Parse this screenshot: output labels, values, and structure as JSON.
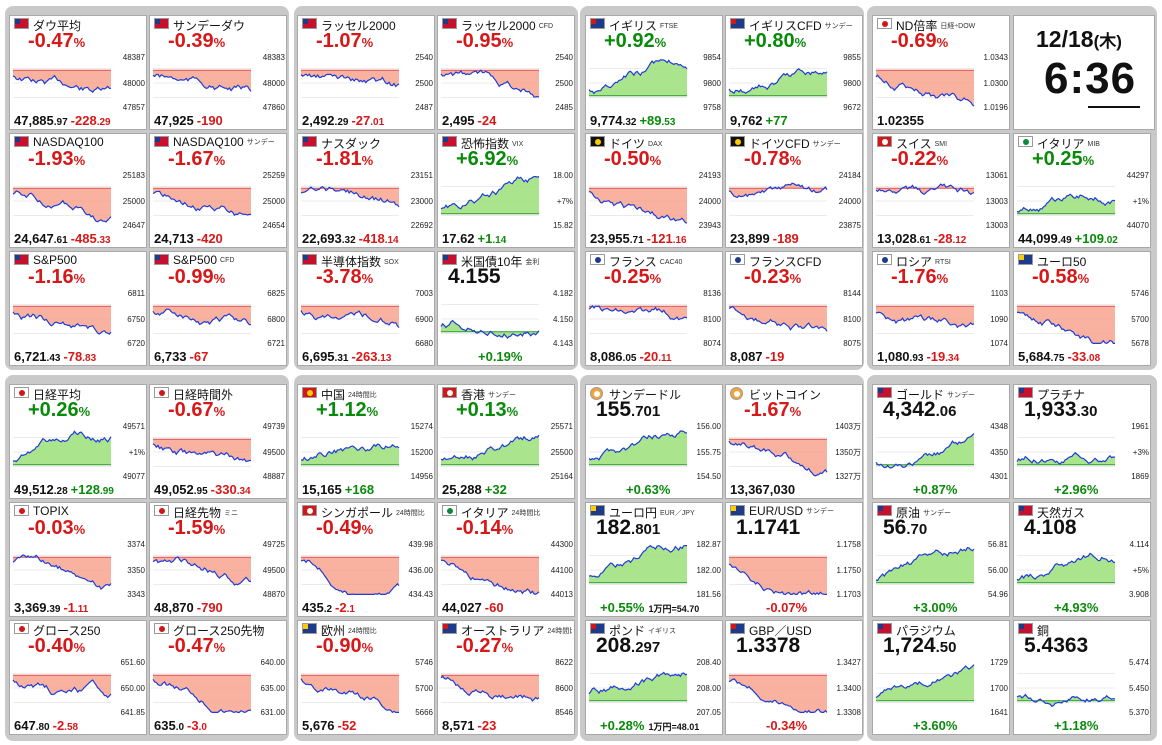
{
  "clock": {
    "date": "12/18",
    "weekday": "(木)",
    "time": "6:36"
  },
  "tiles": [
    {
      "key": "dow",
      "name": "ダウ平均",
      "sub": "",
      "flag": "us",
      "chg": "-0.47",
      "pct": "%",
      "dir": "down",
      "main": "47,885",
      "mainDec": ".97",
      "delta": "-228",
      "deltaDec": ".29",
      "hi": "48387",
      "lo": "47857",
      "tick": "48000"
    },
    {
      "key": "sunday-dow",
      "name": "サンデーダウ",
      "sub": "",
      "flag": "us",
      "chg": "-0.39",
      "pct": "%",
      "dir": "down",
      "main": "47,925",
      "mainDec": "",
      "delta": "-190",
      "deltaDec": "",
      "hi": "48383",
      "lo": "47860",
      "tick": "48000"
    },
    {
      "key": "russell2000",
      "name": "ラッセル2000",
      "sub": "",
      "flag": "us",
      "chg": "-1.07",
      "pct": "%",
      "dir": "down",
      "main": "2,492",
      "mainDec": ".29",
      "delta": "-27",
      "deltaDec": ".01",
      "hi": "2540",
      "lo": "2487",
      "tick": "2500"
    },
    {
      "key": "russell2000-cfd",
      "name": "ラッセル2000",
      "sub": "CFD",
      "flag": "us",
      "chg": "-0.95",
      "pct": "%",
      "dir": "down",
      "main": "2,495",
      "mainDec": "",
      "delta": "-24",
      "deltaDec": "",
      "hi": "2540",
      "lo": "2485",
      "tick": "2500"
    },
    {
      "key": "uk-ftse",
      "name": "イギリス",
      "sub": "FTSE",
      "flag": "uk",
      "chg": "+0.92",
      "pct": "%",
      "dir": "up",
      "main": "9,774",
      "mainDec": ".32",
      "delta": "+89",
      "deltaDec": ".53",
      "hi": "9854",
      "lo": "9758",
      "tick": "9800"
    },
    {
      "key": "uk-cfd",
      "name": "イギリスCFD",
      "sub": "サンデー",
      "flag": "uk",
      "chg": "+0.80",
      "pct": "%",
      "dir": "up",
      "main": "9,762",
      "mainDec": "",
      "delta": "+77",
      "deltaDec": "",
      "hi": "9855",
      "lo": "9672",
      "tick": "9800"
    },
    {
      "key": "nd-ratio",
      "name": "ND倍率",
      "sub": "日経÷DOW",
      "flag": "jp",
      "chg": "-0.69",
      "pct": "%",
      "dir": "down",
      "main": "1.02355",
      "mainDec": "",
      "delta": "",
      "deltaDec": "",
      "hi": "1.0343",
      "lo": "1.0196",
      "tick": "1.0300"
    },
    {
      "key": "nasdaq100",
      "name": "NASDAQ100",
      "sub": "",
      "flag": "us",
      "chg": "-1.93",
      "pct": "%",
      "dir": "down",
      "main": "24,647",
      "mainDec": ".61",
      "delta": "-485",
      "deltaDec": ".33",
      "hi": "25183",
      "lo": "24647",
      "tick": "25000"
    },
    {
      "key": "nasdaq100-sunday",
      "name": "NASDAQ100",
      "sub": "サンデー",
      "flag": "us",
      "chg": "-1.67",
      "pct": "%",
      "dir": "down",
      "main": "24,713",
      "mainDec": "",
      "delta": "-420",
      "deltaDec": "",
      "hi": "25259",
      "lo": "24654",
      "tick": "25000"
    },
    {
      "key": "nasdaq",
      "name": "ナスダック",
      "sub": "",
      "flag": "us",
      "chg": "-1.81",
      "pct": "%",
      "dir": "down",
      "main": "22,693",
      "mainDec": ".32",
      "delta": "-418",
      "deltaDec": ".14",
      "hi": "23151",
      "lo": "22692",
      "tick": "23000"
    },
    {
      "key": "vix",
      "name": "恐怖指数",
      "sub": "VIX",
      "flag": "us",
      "chg": "+6.92",
      "pct": "%",
      "dir": "up",
      "main": "17.62",
      "mainDec": "",
      "delta": "+1",
      "deltaDec": ".14",
      "hi": "18.00",
      "lo": "15.82",
      "tick": "+7%"
    },
    {
      "key": "germany-dax",
      "name": "ドイツ",
      "sub": "DAX",
      "flag": "de",
      "chg": "-0.50",
      "pct": "%",
      "dir": "down",
      "main": "23,955",
      "mainDec": ".71",
      "delta": "-121",
      "deltaDec": ".16",
      "hi": "24193",
      "lo": "23943",
      "tick": "24000"
    },
    {
      "key": "germany-cfd",
      "name": "ドイツCFD",
      "sub": "サンデー",
      "flag": "de",
      "chg": "-0.78",
      "pct": "%",
      "dir": "down",
      "main": "23,899",
      "mainDec": "",
      "delta": "-189",
      "deltaDec": "",
      "hi": "24184",
      "lo": "23875",
      "tick": "24000"
    },
    {
      "key": "swiss-smi",
      "name": "スイス",
      "sub": "SMI",
      "flag": "ch",
      "chg": "-0.22",
      "pct": "%",
      "dir": "down",
      "main": "13,028",
      "mainDec": ".61",
      "delta": "-28",
      "deltaDec": ".12",
      "hi": "13061",
      "lo": "13003",
      "tick": "13003"
    },
    {
      "key": "italy-mib",
      "name": "イタリア",
      "sub": "MIB",
      "flag": "it",
      "chg": "+0.25",
      "pct": "%",
      "dir": "up",
      "main": "44,099",
      "mainDec": ".49",
      "delta": "+109",
      "deltaDec": ".02",
      "hi": "44297",
      "lo": "44070",
      "tick": "+1%"
    },
    {
      "key": "sp500",
      "name": "S&P500",
      "sub": "",
      "flag": "us",
      "chg": "-1.16",
      "pct": "%",
      "dir": "down",
      "main": "6,721",
      "mainDec": ".43",
      "delta": "-78",
      "deltaDec": ".83",
      "hi": "6811",
      "lo": "6720",
      "tick": "6750"
    },
    {
      "key": "sp500-cfd",
      "name": "S&P500",
      "sub": "CFD",
      "flag": "us",
      "chg": "-0.99",
      "pct": "%",
      "dir": "down",
      "main": "6,733",
      "mainDec": "",
      "delta": "-67",
      "deltaDec": "",
      "hi": "6825",
      "lo": "6721",
      "tick": "6800"
    },
    {
      "key": "sox",
      "name": "半導体指数",
      "sub": "SOX",
      "flag": "us",
      "chg": "-3.78",
      "pct": "%",
      "dir": "down",
      "main": "6,695",
      "mainDec": ".31",
      "delta": "-263",
      "deltaDec": ".13",
      "hi": "7003",
      "lo": "6680",
      "tick": "6900"
    },
    {
      "key": "us10y",
      "name": "米国債10年",
      "sub": "金利",
      "flag": "us",
      "big": "4.155",
      "dir": "up",
      "pctline": "+0.19%",
      "hi": "4.182",
      "lo": "4.143",
      "tick": "4.150"
    },
    {
      "key": "france-cac40",
      "name": "フランス",
      "sub": "CAC40",
      "flag": "fr",
      "chg": "-0.25",
      "pct": "%",
      "dir": "down",
      "main": "8,086",
      "mainDec": ".05",
      "delta": "-20",
      "deltaDec": ".11",
      "hi": "8136",
      "lo": "8074",
      "tick": "8100"
    },
    {
      "key": "france-cfd",
      "name": "フランスCFD",
      "sub": "",
      "flag": "fr",
      "chg": "-0.23",
      "pct": "%",
      "dir": "down",
      "main": "8,087",
      "mainDec": "",
      "delta": "-19",
      "deltaDec": "",
      "hi": "8144",
      "lo": "8075",
      "tick": "8100"
    },
    {
      "key": "russia-rtsi",
      "name": "ロシア",
      "sub": "RTSI",
      "flag": "ru",
      "chg": "-1.76",
      "pct": "%",
      "dir": "down",
      "main": "1,080",
      "mainDec": ".93",
      "delta": "-19",
      "deltaDec": ".34",
      "hi": "1103",
      "lo": "1074",
      "tick": "1090"
    },
    {
      "key": "euro50",
      "name": "ユーロ50",
      "sub": "",
      "flag": "eu",
      "chg": "-0.58",
      "pct": "%",
      "dir": "down",
      "main": "5,684",
      "mainDec": ".75",
      "delta": "-33",
      "deltaDec": ".08",
      "hi": "5746",
      "lo": "5678",
      "tick": "5700"
    },
    {
      "key": "nikkei",
      "name": "日経平均",
      "sub": "",
      "flag": "jp",
      "chg": "+0.26",
      "pct": "%",
      "dir": "up",
      "main": "49,512",
      "mainDec": ".28",
      "delta": "+128",
      "deltaDec": ".99",
      "hi": "49571",
      "lo": "49077",
      "tick": "+1%"
    },
    {
      "key": "nikkei-night",
      "name": "日経時間外",
      "sub": "",
      "flag": "jp",
      "chg": "-0.67",
      "pct": "%",
      "dir": "down",
      "main": "49,052",
      "mainDec": ".95",
      "delta": "-330",
      "deltaDec": ".34",
      "hi": "49739",
      "lo": "48887",
      "tick": "49500"
    },
    {
      "key": "china",
      "name": "中国",
      "sub": "24時間比",
      "flag": "cn",
      "chg": "+1.12",
      "pct": "%",
      "dir": "up",
      "main": "15,165",
      "mainDec": "",
      "delta": "+168",
      "deltaDec": "",
      "hi": "15274",
      "lo": "14956",
      "tick": "15200"
    },
    {
      "key": "hongkong",
      "name": "香港",
      "sub": "サンデー",
      "flag": "hk",
      "chg": "+0.13",
      "pct": "%",
      "dir": "up",
      "main": "25,288",
      "mainDec": "",
      "delta": "+32",
      "deltaDec": "",
      "hi": "25571",
      "lo": "25164",
      "tick": "25500"
    },
    {
      "key": "sunday-dollar",
      "name": "サンデードル",
      "sub": "",
      "flag": "btc",
      "big": "155",
      "bigDec": ".701",
      "dir": "up",
      "pctline": "+0.63%",
      "hi": "156.00",
      "lo": "154.50",
      "tick": "155.75"
    },
    {
      "key": "bitcoin",
      "name": "ビットコイン",
      "sub": "",
      "flag": "btc",
      "chg": "-1.67",
      "pct": "%",
      "dir": "down",
      "main": "13,367,030",
      "mainDec": "",
      "delta": "",
      "deltaDec": "",
      "hi": "1403万",
      "lo": "1327万",
      "tick": "1350万"
    },
    {
      "key": "gold",
      "name": "ゴールド",
      "sub": "サンデー",
      "flag": "us",
      "big": "4,342",
      "bigDec": ".06",
      "dir": "up",
      "pctline": "+0.87%",
      "hi": "4348",
      "lo": "4301",
      "tick": "4350"
    },
    {
      "key": "platinum",
      "name": "プラチナ",
      "sub": "",
      "flag": "us",
      "big": "1,933",
      "bigDec": ".30",
      "dir": "up",
      "pctline": "+2.96%",
      "hi": "1961",
      "lo": "1869",
      "tick": "+3%"
    },
    {
      "key": "topix",
      "name": "TOPIX",
      "sub": "",
      "flag": "jp",
      "chg": "-0.03",
      "pct": "%",
      "dir": "down",
      "main": "3,369",
      "mainDec": ".39",
      "delta": "-1",
      "deltaDec": ".11",
      "hi": "3374",
      "lo": "3343",
      "tick": "3350"
    },
    {
      "key": "nikkei-futures",
      "name": "日経先物",
      "sub": "ミニ",
      "flag": "jp",
      "chg": "-1.59",
      "pct": "%",
      "dir": "down",
      "main": "48,870",
      "mainDec": "",
      "delta": "-790",
      "deltaDec": "",
      "hi": "49725",
      "lo": "48870",
      "tick": "49500"
    },
    {
      "key": "singapore",
      "name": "シンガポール",
      "sub": "24時間比",
      "flag": "sg",
      "chg": "-0.49",
      "pct": "%",
      "dir": "down",
      "main": "435",
      "mainDec": ".2",
      "delta": "-2",
      "deltaDec": ".1",
      "hi": "439.98",
      "lo": "434.43",
      "tick": "436.00"
    },
    {
      "key": "italy",
      "name": "イタリア",
      "sub": "24時間比",
      "flag": "it",
      "chg": "-0.14",
      "pct": "%",
      "dir": "down",
      "main": "44,027",
      "mainDec": "",
      "delta": "-60",
      "deltaDec": "",
      "hi": "44300",
      "lo": "44013",
      "tick": "44100"
    },
    {
      "key": "eurjpy",
      "name": "ユーロ円",
      "sub": "EUR／JPY",
      "flag": "eu",
      "big": "182",
      "bigDec": ".801",
      "dir": "up",
      "pctline": "+0.55%",
      "pctnote": "1万円=54.70",
      "hi": "182.87",
      "lo": "181.56",
      "tick": "182.00"
    },
    {
      "key": "eurusd",
      "name": "EUR/USD",
      "sub": "サンデー",
      "flag": "eu",
      "big": "1.1741",
      "bigDec": "",
      "dir": "down",
      "pctline": "-0.07%",
      "hi": "1.1758",
      "lo": "1.1703",
      "tick": "1.1750"
    },
    {
      "key": "crude-oil",
      "name": "原油",
      "sub": "サンデー",
      "flag": "us",
      "big": "56",
      "bigDec": ".70",
      "dir": "up",
      "pctline": "+3.00%",
      "hi": "56.81",
      "lo": "54.96",
      "tick": "56.00"
    },
    {
      "key": "natural-gas",
      "name": "天然ガス",
      "sub": "",
      "flag": "us",
      "big": "4.108",
      "bigDec": "",
      "dir": "up",
      "pctline": "+4.93%",
      "hi": "4.114",
      "lo": "3.908",
      "tick": "+5%"
    },
    {
      "key": "growth250",
      "name": "グロース250",
      "sub": "",
      "flag": "jp",
      "chg": "-0.40",
      "pct": "%",
      "dir": "down",
      "main": "647",
      "mainDec": ".80",
      "delta": "-2",
      "deltaDec": ".58",
      "hi": "651.60",
      "lo": "641.85",
      "tick": "650.00"
    },
    {
      "key": "growth250-futures",
      "name": "グロース250先物",
      "sub": "",
      "flag": "jp",
      "chg": "-0.47",
      "pct": "%",
      "dir": "down",
      "main": "635",
      "mainDec": ".0",
      "delta": "-3",
      "deltaDec": ".0",
      "hi": "640.00",
      "lo": "631.00",
      "tick": "635.00"
    },
    {
      "key": "europe",
      "name": "欧州",
      "sub": "24時間比",
      "flag": "eu",
      "chg": "-0.90",
      "pct": "%",
      "dir": "down",
      "main": "5,676",
      "mainDec": "",
      "delta": "-52",
      "deltaDec": "",
      "hi": "5746",
      "lo": "5666",
      "tick": "5700"
    },
    {
      "key": "australia",
      "name": "オーストラリア",
      "sub": "24時間比",
      "flag": "au",
      "chg": "-0.27",
      "pct": "%",
      "dir": "down",
      "main": "8,571",
      "mainDec": "",
      "delta": "-23",
      "deltaDec": "",
      "hi": "8622",
      "lo": "8546",
      "tick": "8600"
    },
    {
      "key": "gbp",
      "name": "ポンド",
      "sub": "イギリス",
      "flag": "uk",
      "big": "208",
      "bigDec": ".297",
      "dir": "up",
      "pctline": "+0.28%",
      "pctnote": "1万円=48.01",
      "hi": "208.40",
      "lo": "207.05",
      "tick": "208.00"
    },
    {
      "key": "gbpusd",
      "name": "GBP／USD",
      "sub": "",
      "flag": "uk",
      "big": "1.3378",
      "bigDec": "",
      "dir": "down",
      "pctline": "-0.34%",
      "hi": "1.3427",
      "lo": "1.3308",
      "tick": "1.3400"
    },
    {
      "key": "palladium",
      "name": "パラジウム",
      "sub": "",
      "flag": "us",
      "big": "1,724",
      "bigDec": ".50",
      "dir": "up",
      "pctline": "+3.60%",
      "hi": "1729",
      "lo": "1641",
      "tick": "1700"
    },
    {
      "key": "copper",
      "name": "銅",
      "sub": "",
      "flag": "us",
      "big": "5.4363",
      "bigDec": "",
      "dir": "up",
      "pctline": "+1.18%",
      "hi": "5.474",
      "lo": "5.370",
      "tick": "5.450"
    }
  ],
  "flags": {
    "us": {
      "bg": "#c8102e",
      "accent": "#1e3a8a"
    },
    "jp": {
      "bg": "#ffffff",
      "accent": "#d01818"
    },
    "uk": {
      "bg": "#1e3a8a",
      "accent": "#d01818"
    },
    "de": {
      "bg": "#111111",
      "accent": "#ffcc00"
    },
    "ch": {
      "bg": "#d01818",
      "accent": "#ffffff"
    },
    "it": {
      "bg": "#ffffff",
      "accent": "#0a8a3a"
    },
    "fr": {
      "bg": "#ffffff",
      "accent": "#1e3a8a"
    },
    "ru": {
      "bg": "#ffffff",
      "accent": "#1e3a8a"
    },
    "eu": {
      "bg": "#1e3a8a",
      "accent": "#ffcc00"
    },
    "cn": {
      "bg": "#d01818",
      "accent": "#ffcc00"
    },
    "hk": {
      "bg": "#d01818",
      "accent": "#ffffff"
    },
    "sg": {
      "bg": "#d01818",
      "accent": "#ffffff"
    },
    "au": {
      "bg": "#1e3a8a",
      "accent": "#d01818"
    },
    "btc": {
      "bg": "#f2a33a",
      "accent": "#ffffff"
    }
  },
  "colors": {
    "up": "#0a8a0a",
    "down": "#d81818",
    "fillUp": "#9be07a",
    "fillDown": "#f7a58e",
    "line": "#1f3bd8"
  }
}
